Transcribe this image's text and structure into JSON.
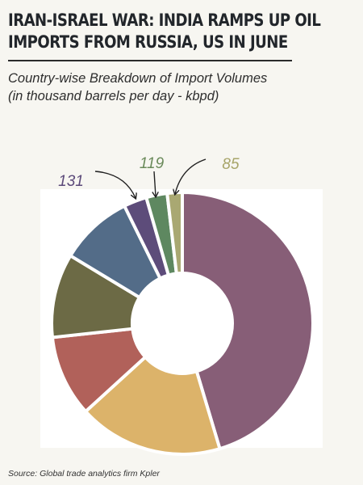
{
  "headline": "IRAN-ISRAEL WAR: INDIA RAMPS UP OIL IMPORTS FROM RUSSIA, US IN JUNE",
  "subtitle_line1": "Country-wise Breakdown of Import Volumes",
  "subtitle_line2": "(in thousand barrels per day - kbpd)",
  "source": "Source: Global trade analytics firm Kpler",
  "chart_data": {
    "type": "pie",
    "subtype": "donut",
    "title": "Country-wise Breakdown of Import Volumes",
    "subtitle": "(in thousand barrels per day - kbpd)",
    "start_angle_deg": 0,
    "direction": "clockwise",
    "slices": [
      {
        "value": 2080,
        "color": "#875e77",
        "label": ""
      },
      {
        "value": 820,
        "color": "#dcb36a",
        "label": ""
      },
      {
        "value": 460,
        "color": "#b1615a",
        "label": ""
      },
      {
        "value": 475,
        "color": "#6c6a45",
        "label": ""
      },
      {
        "value": 415,
        "color": "#536c88",
        "label": ""
      },
      {
        "value": 131,
        "color": "#5d4c7a",
        "label": "131",
        "label_color": "#5c4a7a"
      },
      {
        "value": 119,
        "color": "#5e8860",
        "label": "119",
        "label_color": "#6a8a5a"
      },
      {
        "value": 85,
        "color": "#a9a872",
        "label": "85",
        "label_color": "#a8a56a"
      }
    ],
    "legend": "none",
    "annotations": [
      "131",
      "119",
      "85"
    ]
  }
}
